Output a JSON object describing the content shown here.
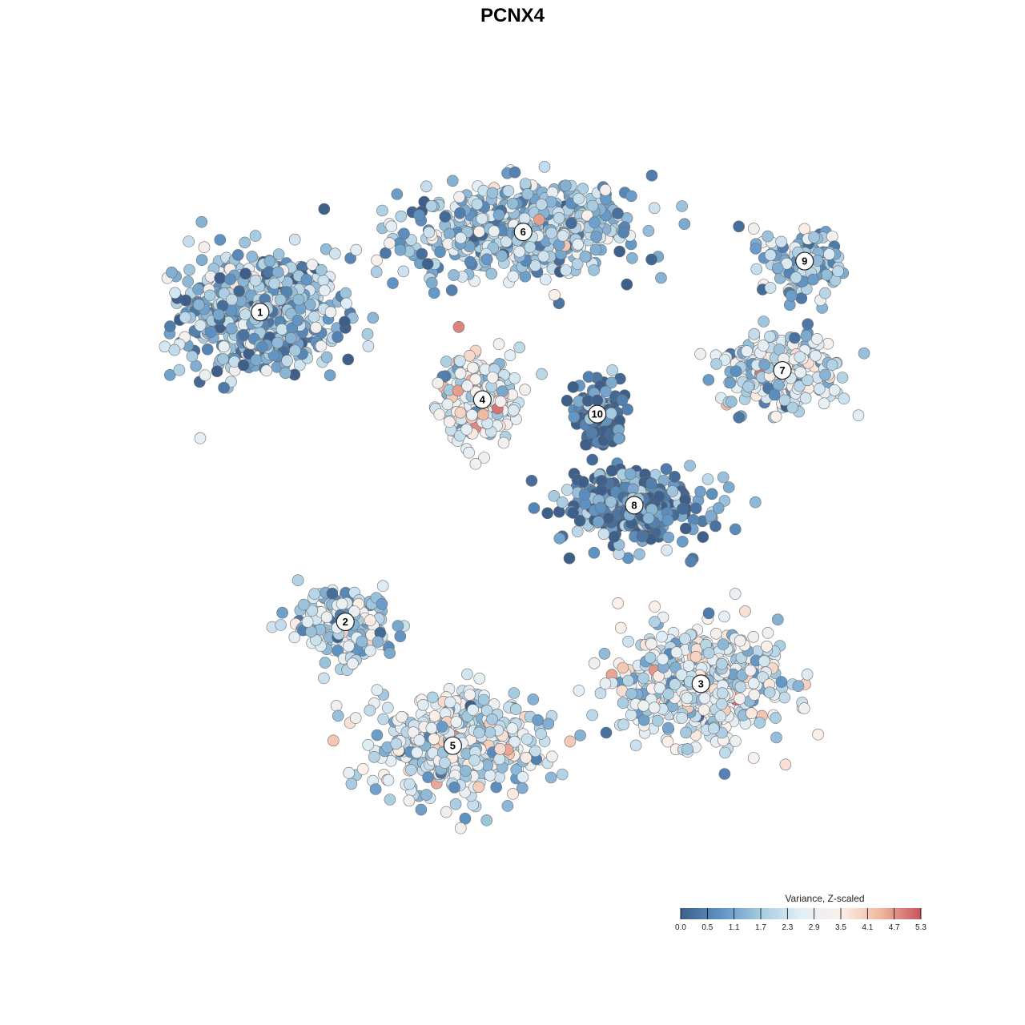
{
  "chart_data": {
    "type": "scatter",
    "title": "PCNX4",
    "xlabel": "",
    "ylabel": "",
    "xlim": [
      0,
      100
    ],
    "ylim": [
      0,
      100
    ],
    "grid": false,
    "color_scale": {
      "title": "Variance, Z-scaled",
      "min": 0.0,
      "max": 5.3,
      "ticks": [
        "0.0",
        "0.5",
        "1.1",
        "1.7",
        "2.3",
        "2.9",
        "3.5",
        "4.1",
        "4.7",
        "5.3"
      ],
      "colors": [
        "#3d5f8a",
        "#5e93c4",
        "#a6cbe0",
        "#e2eef6",
        "#fbf0ea",
        "#f0b79e",
        "#c8535e"
      ],
      "placement": "bottom-right"
    },
    "clusters": [
      {
        "label": "1",
        "x": 13.5,
        "y": 77.5,
        "mean": 1.5
      },
      {
        "label": "2",
        "x": 25.0,
        "y": 35.0,
        "mean": 2.1
      },
      {
        "label": "3",
        "x": 73.0,
        "y": 26.5,
        "mean": 2.5
      },
      {
        "label": "4",
        "x": 43.5,
        "y": 65.5,
        "mean": 2.9
      },
      {
        "label": "5",
        "x": 39.5,
        "y": 18.0,
        "mean": 2.4
      },
      {
        "label": "6",
        "x": 49.0,
        "y": 88.5,
        "mean": 1.7
      },
      {
        "label": "7",
        "x": 84.0,
        "y": 69.5,
        "mean": 2.2
      },
      {
        "label": "8",
        "x": 64.0,
        "y": 51.0,
        "mean": 0.6
      },
      {
        "label": "9",
        "x": 87.0,
        "y": 84.5,
        "mean": 1.6
      },
      {
        "label": "10",
        "x": 59.0,
        "y": 63.5,
        "mean": 0.4
      }
    ]
  }
}
